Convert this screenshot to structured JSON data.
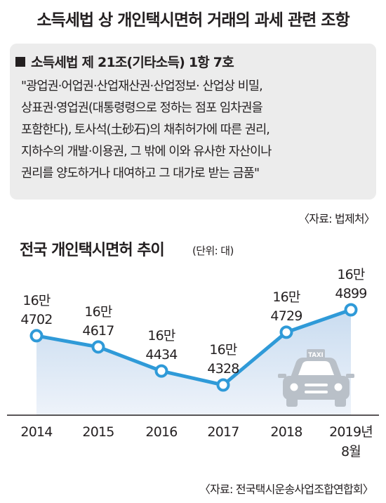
{
  "title": "소득세법 상 개인택시면허 거래의 과세 관련 조항",
  "law": {
    "heading": "소득세법 제 21조(기타소득) 1항 7호",
    "lines": [
      "\"광업권·어업권·산업재산권·산업정보·  산업상 비밀,",
      "상표권·영업권(대통령령으로 정하는 점포 임차권을",
      "포함한다), 토사석(土砂石)의 채취허가에 따른 권리,",
      "지하수의 개발·이용권, 그 밖에 이와 유사한 자산이나",
      "권리를 양도하거나 대여하고 그 대가로 받는 금품\""
    ],
    "source": "〈자료: 법제처〉"
  },
  "chart": {
    "title": "전국 개인택시면허 추이",
    "unit": "(단위: 대)",
    "source": "〈자료: 전국택시운송사업조합연합회〉",
    "taxi_sign": "TAXI"
  },
  "chart_data": {
    "type": "area",
    "categories": [
      "2014",
      "2015",
      "2016",
      "2017",
      "2018",
      "2019년 8월"
    ],
    "x_tick_lines": [
      [
        "2014"
      ],
      [
        "2015"
      ],
      [
        "2016"
      ],
      [
        "2017"
      ],
      [
        "2018"
      ],
      [
        "2019년",
        "8월"
      ]
    ],
    "values": [
      164702,
      164617,
      164434,
      164328,
      164729,
      164899
    ],
    "data_labels": [
      [
        "16만",
        "4702"
      ],
      [
        "16만",
        "4617"
      ],
      [
        "16만",
        "4434"
      ],
      [
        "16만",
        "4328"
      ],
      [
        "16만",
        "4729"
      ],
      [
        "16만",
        "4899"
      ]
    ],
    "title": "전국 개인택시면허 추이",
    "unit": "(단위: 대)",
    "grid": false,
    "colors": {
      "line": "#2f9ad8",
      "marker_fill": "#ffffff",
      "area_top": "#c9dcf0",
      "area_bottom": "#eef3fa",
      "baseline": "#231f20",
      "taxi": "#b9c0c8"
    }
  }
}
